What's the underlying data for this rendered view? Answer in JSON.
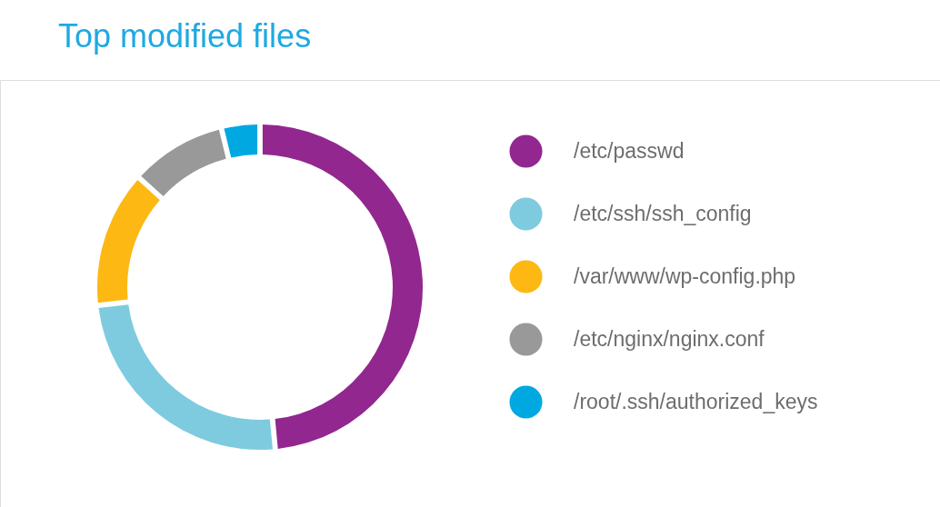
{
  "chart_data": {
    "type": "donut",
    "title": "Top modified files",
    "categories": [
      "/etc/passwd",
      "/etc/ssh/ssh_config",
      "/var/www/wp-config.php",
      "/etc/nginx/nginx.conf",
      "/root/.ssh/authorized_keys"
    ],
    "values": [
      48.5,
      24.7,
      13.5,
      9.5,
      3.8
    ],
    "colors": [
      "#92278f",
      "#7ecbe0",
      "#fdb813",
      "#999999",
      "#00a8e1"
    ],
    "legend": "right"
  }
}
